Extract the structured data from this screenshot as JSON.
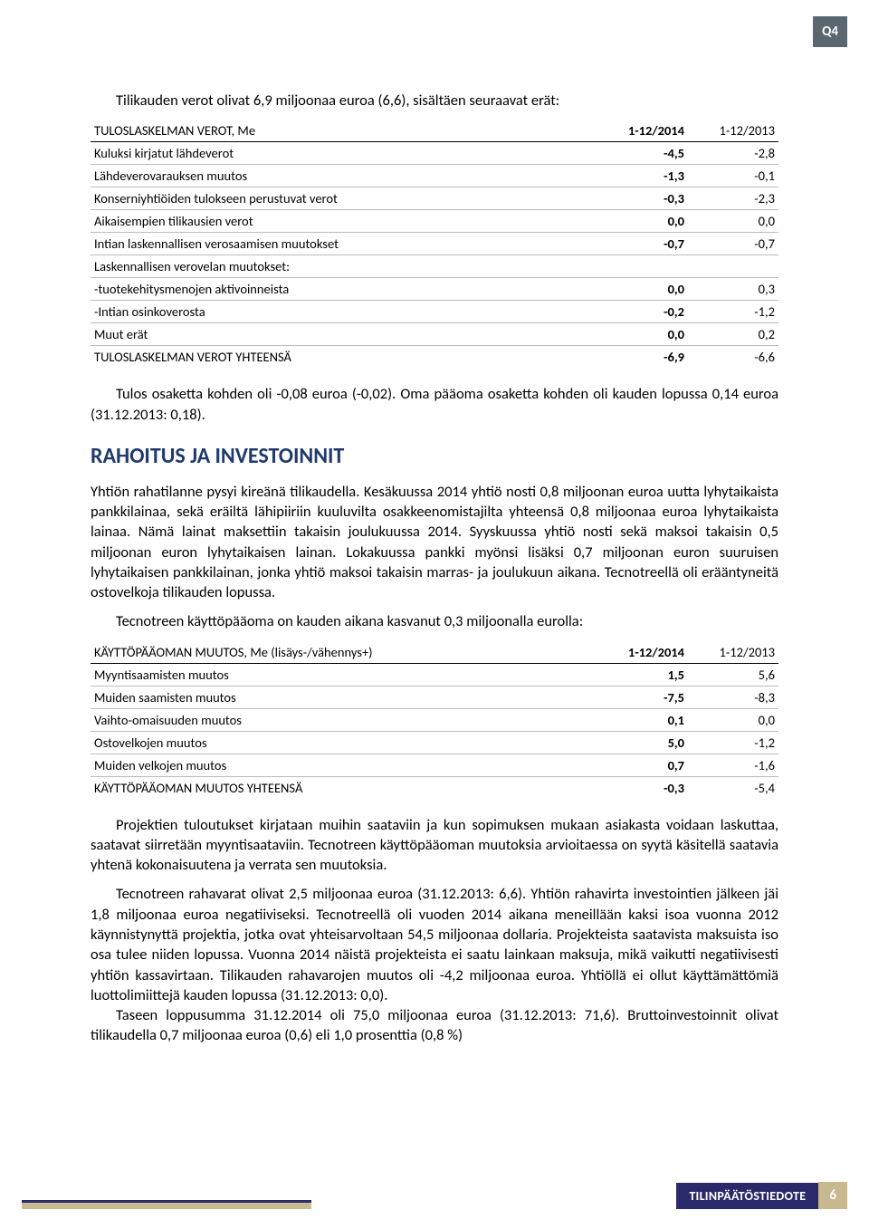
{
  "badge": {
    "label": "Q4"
  },
  "intro_text": "Tilikauden verot olivat 6,9 miljoonaa euroa (6,6), sisältäen seuraavat erät:",
  "table1": {
    "header_label": "TULOSLASKELMAN VEROT, Me",
    "col1": "1-12/2014",
    "col2": "1-12/2013",
    "rows": [
      {
        "label": "Kuluksi kirjatut lähdeverot",
        "v1": "-4,5",
        "v2": "-2,8"
      },
      {
        "label": "Lähdeverovarauksen muutos",
        "v1": "-1,3",
        "v2": "-0,1"
      },
      {
        "label": "Konserniyhtiöiden tulokseen perustuvat verot",
        "v1": "-0,3",
        "v2": "-2,3"
      },
      {
        "label": "Aikaisempien tilikausien verot",
        "v1": "0,0",
        "v2": "0,0"
      },
      {
        "label": "Intian laskennallisen verosaamisen muutokset",
        "v1": "-0,7",
        "v2": "-0,7"
      },
      {
        "label": "Laskennallisen verovelan muutokset:",
        "v1": "",
        "v2": ""
      },
      {
        "label": "-tuotekehitysmenojen aktivoinneista",
        "v1": "0,0",
        "v2": "0,3"
      },
      {
        "label": "-Intian osinkoverosta",
        "v1": "-0,2",
        "v2": "-1,2"
      },
      {
        "label": "Muut erät",
        "v1": "0,0",
        "v2": "0,2"
      }
    ],
    "total": {
      "label": "TULOSLASKELMAN VEROT YHTEENSÄ",
      "v1": "-6,9",
      "v2": "-6,6"
    }
  },
  "para_after_table1": "Tulos osaketta kohden oli -0,08 euroa (-0,02). Oma pääoma osaketta kohden oli kauden lopussa 0,14 euroa (31.12.2013: 0,18).",
  "section_title": "RAHOITUS JA INVESTOINNIT",
  "para_fin_1": "Yhtiön rahatilanne pysyi kireänä tilikaudella. Kesäkuussa 2014 yhtiö nosti 0,8 miljoonan euroa uutta lyhytaikaista pankkilainaa, sekä eräiltä lähipiiriin kuuluvilta osakkeenomistajilta yhteensä 0,8 miljoonaa euroa lyhytaikaista lainaa. Nämä lainat maksettiin takaisin joulukuussa 2014. Syyskuussa yhtiö nosti sekä maksoi takaisin 0,5 miljoonan euron lyhytaikaisen lainan. Lokakuussa pankki myönsi lisäksi 0,7 miljoonan euron suuruisen lyhytaikaisen pankkilainan, jonka yhtiö maksoi takaisin marras- ja joulukuun aikana. Tecnotreellä oli erääntyneitä ostovelkoja tilikauden lopussa.",
  "para_fin_2": "Tecnotreen käyttöpääoma on kauden aikana kasvanut 0,3 miljoonalla eurolla:",
  "table2": {
    "header_label": "KÄYTTÖPÄÄOMAN MUUTOS, Me (lisäys-/vähennys+)",
    "col1": "1-12/2014",
    "col2": "1-12/2013",
    "rows": [
      {
        "label": "Myyntisaamisten muutos",
        "v1": "1,5",
        "v2": "5,6"
      },
      {
        "label": "Muiden saamisten muutos",
        "v1": "-7,5",
        "v2": "-8,3"
      },
      {
        "label": "Vaihto-omaisuuden muutos",
        "v1": "0,1",
        "v2": "0,0"
      },
      {
        "label": "Ostovelkojen muutos",
        "v1": "5,0",
        "v2": "-1,2"
      },
      {
        "label": "Muiden velkojen muutos",
        "v1": "0,7",
        "v2": "-1,6"
      }
    ],
    "total": {
      "label": "KÄYTTÖPÄÄOMAN MUUTOS YHTEENSÄ",
      "v1": "-0,3",
      "v2": "-5,4"
    }
  },
  "para_fin_3": "Projektien tuloutukset kirjataan muihin saataviin ja kun sopimuksen mukaan asiakasta voidaan laskuttaa, saatavat siirretään myyntisaataviin. Tecnotreen käyttöpääoman muutoksia arvioitaessa on syytä käsitellä saatavia yhtenä kokonaisuutena ja verrata sen muutoksia.",
  "para_fin_4": "Tecnotreen rahavarat olivat 2,5 miljoonaa euroa (31.12.2013: 6,6). Yhtiön rahavirta investointien jälkeen jäi 1,8 miljoonaa euroa negatiiviseksi. Tecnotreellä oli vuoden 2014 aikana meneillään kaksi isoa vuonna 2012 käynnistynyttä projektia, jotka ovat yhteisarvoltaan 54,5 miljoonaa dollaria. Projekteista saatavista maksuista iso osa tulee niiden lopussa. Vuonna 2014 näistä projekteista ei saatu lainkaan maksuja, mikä vaikutti negatiivisesti yhtiön kassavirtaan. Tilikauden rahavarojen muutos oli -4,2 miljoonaa euroa. Yhtiöllä ei ollut käyttämättömiä luottolimiittejä kauden lopussa (31.12.2013: 0,0).",
  "para_fin_5": "Taseen loppusumma 31.12.2014 oli 75,0 miljoonaa euroa (31.12.2013: 71,6). Bruttoinvestoinnit olivat tilikaudella 0,7 miljoonaa euroa (0,6) eli 1,0 prosenttia (0,8 %)",
  "footer": {
    "label": "TILINPÄÄTÖSTIEDOTE",
    "page": "6"
  }
}
